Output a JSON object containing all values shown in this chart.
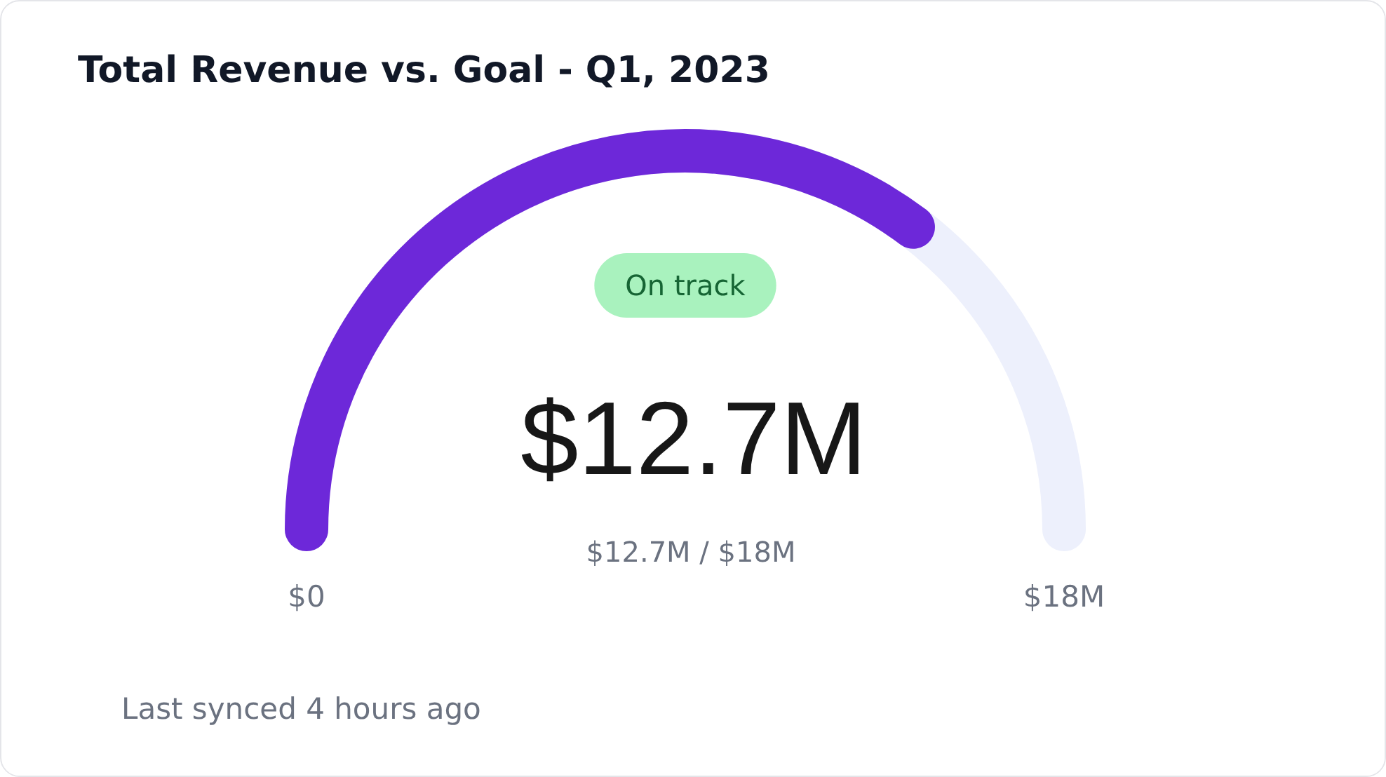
{
  "chart_data": {
    "type": "other",
    "title": "Total Revenue vs. Goal - Q1, 2023",
    "values": [
      12.7,
      18
    ],
    "value_labels": [
      "$12.7M",
      "$18M"
    ],
    "colors": [
      "#6d28d9",
      "#edf0fc"
    ],
    "annotations": [
      "On track",
      "$12.7M / $18M",
      "$0",
      "Last synced 4 hours ago"
    ]
  }
}
